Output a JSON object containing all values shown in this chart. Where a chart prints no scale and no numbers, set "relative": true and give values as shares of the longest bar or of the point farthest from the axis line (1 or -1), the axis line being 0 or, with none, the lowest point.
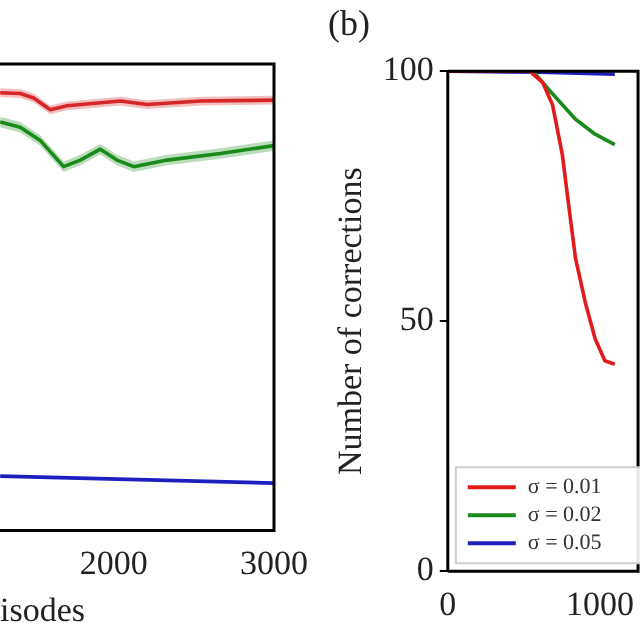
{
  "chart_data": [
    {
      "type": "line",
      "xlabel": "isodes",
      "relative": true,
      "xlim": [
        1290,
        3000
      ],
      "xticks": [
        2000,
        3000
      ],
      "marker": "none",
      "grid": false,
      "legend": false,
      "series": [
        {
          "color": "#d62728",
          "x": [
            1291,
            1416,
            1500,
            1604,
            1708,
            2042,
            2208,
            2541,
            3000
          ],
          "values": [
            1.0,
            0.998,
            0.988,
            0.961,
            0.97,
            0.981,
            0.973,
            0.981,
            0.983
          ],
          "lower": [
            0.99,
            0.988,
            0.978,
            0.951,
            0.96,
            0.971,
            0.963,
            0.971,
            0.973
          ],
          "upper": [
            1.01,
            1.008,
            0.998,
            0.971,
            0.98,
            0.991,
            0.983,
            0.991,
            0.993
          ]
        },
        {
          "color": "#1a8a1a",
          "x": [
            1291,
            1416,
            1541,
            1687,
            1791,
            1916,
            2020,
            2125,
            2333,
            2666,
            3000
          ],
          "values": [
            0.933,
            0.921,
            0.891,
            0.831,
            0.846,
            0.871,
            0.846,
            0.831,
            0.846,
            0.861,
            0.879
          ],
          "lower": [
            0.921,
            0.909,
            0.879,
            0.819,
            0.834,
            0.859,
            0.834,
            0.819,
            0.834,
            0.849,
            0.867
          ],
          "upper": [
            0.945,
            0.933,
            0.903,
            0.843,
            0.858,
            0.883,
            0.858,
            0.843,
            0.858,
            0.873,
            0.891
          ]
        },
        {
          "color": "#1f1fbf",
          "x": [
            1291,
            3000
          ],
          "values": [
            0.124,
            0.108
          ]
        }
      ]
    },
    {
      "type": "line",
      "title": "(b)",
      "ylabel": "Number of corrections",
      "xlim": [
        0,
        1250
      ],
      "xticks": [
        0,
        1000
      ],
      "ylim": [
        0,
        100
      ],
      "yticks": [
        0,
        50,
        100
      ],
      "marker": "none",
      "grid": false,
      "legend": "lower left",
      "series": [
        {
          "name": "σ = 0.01",
          "color": "#e31a1c",
          "x": [
            0,
            538,
            624,
            688,
            753,
            796,
            839,
            903,
            968,
            1032,
            1097
          ],
          "values": [
            100,
            100,
            97.7,
            93.3,
            83.2,
            72.8,
            62.6,
            53.8,
            46.5,
            42.1,
            41.4
          ]
        },
        {
          "name": "σ = 0.02",
          "color": "#1a8a1a",
          "x": [
            0,
            560,
            667,
            839,
            968,
            1097
          ],
          "values": [
            100,
            100,
            96.2,
            90.4,
            87.4,
            85.3
          ]
        },
        {
          "name": "σ = 0.05",
          "color": "#1f1fbf",
          "x": [
            0,
            600,
            1097
          ],
          "values": [
            100,
            99.8,
            99.4
          ]
        }
      ]
    }
  ]
}
